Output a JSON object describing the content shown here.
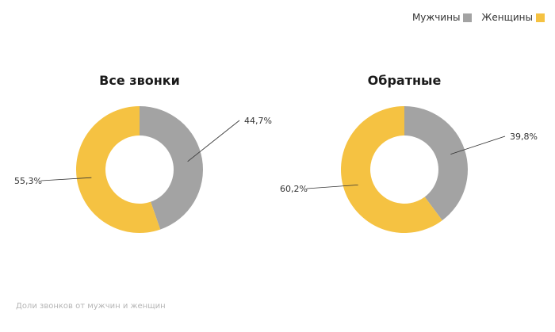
{
  "colors": {
    "men": "#a3a3a3",
    "women": "#f5c242"
  },
  "legend": [
    {
      "label": "Мужчины",
      "color": "#a3a3a3"
    },
    {
      "label": "Женщины",
      "color": "#f5c242"
    }
  ],
  "chart_data": [
    {
      "type": "pie",
      "title": "Все звонки",
      "slices": [
        {
          "name": "Мужчины",
          "value": 44.7,
          "label": "44,7%",
          "color": "#a3a3a3"
        },
        {
          "name": "Женщины",
          "value": 55.3,
          "label": "55,3%",
          "color": "#f5c242"
        }
      ]
    },
    {
      "type": "pie",
      "title": "Обратные",
      "slices": [
        {
          "name": "Мужчины",
          "value": 39.8,
          "label": "39,8%",
          "color": "#a3a3a3"
        },
        {
          "name": "Женщины",
          "value": 60.2,
          "label": "60,2%",
          "color": "#f5c242"
        }
      ]
    }
  ],
  "footer": {
    "note": "Доли звонков от мужчин и женщин"
  }
}
